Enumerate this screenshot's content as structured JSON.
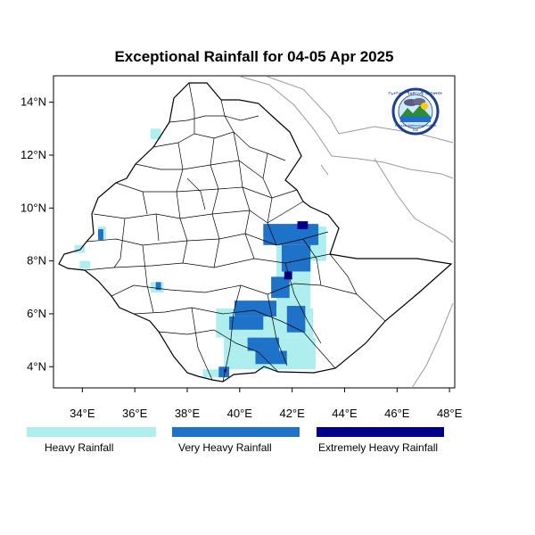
{
  "title": "Exceptional Rainfall for 04-05 Apr 2025",
  "lat_ticks": [
    "14°N",
    "12°N",
    "10°N",
    "8°N",
    "6°N",
    "4°N"
  ],
  "lon_ticks": [
    "34°E",
    "36°E",
    "38°E",
    "40°E",
    "42°E",
    "44°E",
    "46°E",
    "48°E"
  ],
  "legend": [
    {
      "label": "Heavy Rainfall",
      "color": "#aeeeee"
    },
    {
      "label": "Very Heavy Rainfall",
      "color": "#1e73c8"
    },
    {
      "label": "Extremely Heavy Rainfall",
      "color": "#00008b"
    }
  ],
  "logo": {
    "text_top": "የኢትዮጵያ ሜቲዎሮሎጂ ኢንስቲትዩት",
    "text_bottom": "Ethiopian Meteorology Institute",
    "abbr": "EMI"
  },
  "map_extent": {
    "lon": [
      32.9,
      48.2
    ],
    "lat": [
      3.2,
      15.0
    ]
  },
  "heavy_patches": [
    {
      "lon": [
        39.1,
        42.8
      ],
      "lat": [
        5.1,
        6.2
      ]
    },
    {
      "lon": [
        39.4,
        42.9
      ],
      "lat": [
        3.9,
        5.1
      ]
    },
    {
      "lon": [
        38.6,
        39.6
      ],
      "lat": [
        3.6,
        3.9
      ]
    },
    {
      "lon": [
        41.4,
        42.7
      ],
      "lat": [
        6.2,
        8.6
      ]
    },
    {
      "lon": [
        42.6,
        43.3
      ],
      "lat": [
        8.0,
        9.3
      ]
    },
    {
      "lon": [
        34.6,
        34.9
      ],
      "lat": [
        8.8,
        9.3
      ]
    },
    {
      "lon": [
        33.7,
        34.1
      ],
      "lat": [
        8.3,
        8.6
      ]
    },
    {
      "lon": [
        33.9,
        34.3
      ],
      "lat": [
        7.7,
        8.0
      ]
    },
    {
      "lon": [
        36.6,
        37.1
      ],
      "lat": [
        6.8,
        7.2
      ]
    },
    {
      "lon": [
        36.6,
        37.0
      ],
      "lat": [
        12.6,
        13.0
      ]
    }
  ],
  "very_heavy_patches": [
    {
      "lon": [
        40.9,
        43.0
      ],
      "lat": [
        8.6,
        9.4
      ]
    },
    {
      "lon": [
        41.6,
        42.7
      ],
      "lat": [
        7.6,
        8.6
      ]
    },
    {
      "lon": [
        41.2,
        41.9
      ],
      "lat": [
        6.6,
        7.4
      ]
    },
    {
      "lon": [
        39.8,
        41.4
      ],
      "lat": [
        5.9,
        6.5
      ]
    },
    {
      "lon": [
        39.6,
        40.9
      ],
      "lat": [
        5.4,
        5.9
      ]
    },
    {
      "lon": [
        41.8,
        42.5
      ],
      "lat": [
        5.3,
        6.3
      ]
    },
    {
      "lon": [
        40.3,
        41.5
      ],
      "lat": [
        4.6,
        5.1
      ]
    },
    {
      "lon": [
        40.6,
        41.8
      ],
      "lat": [
        4.1,
        4.6
      ]
    },
    {
      "lon": [
        39.2,
        39.6
      ],
      "lat": [
        3.6,
        4.0
      ]
    },
    {
      "lon": [
        34.6,
        34.8
      ],
      "lat": [
        8.8,
        9.2
      ]
    },
    {
      "lon": [
        36.8,
        37.0
      ],
      "lat": [
        6.9,
        7.2
      ]
    }
  ],
  "extreme_patches": [
    {
      "lon": [
        42.2,
        42.6
      ],
      "lat": [
        9.2,
        9.5
      ]
    },
    {
      "lon": [
        41.7,
        42.0
      ],
      "lat": [
        7.3,
        7.6
      ]
    },
    {
      "lon": [
        39.4,
        39.5
      ],
      "lat": [
        3.8,
        3.9
      ]
    }
  ]
}
